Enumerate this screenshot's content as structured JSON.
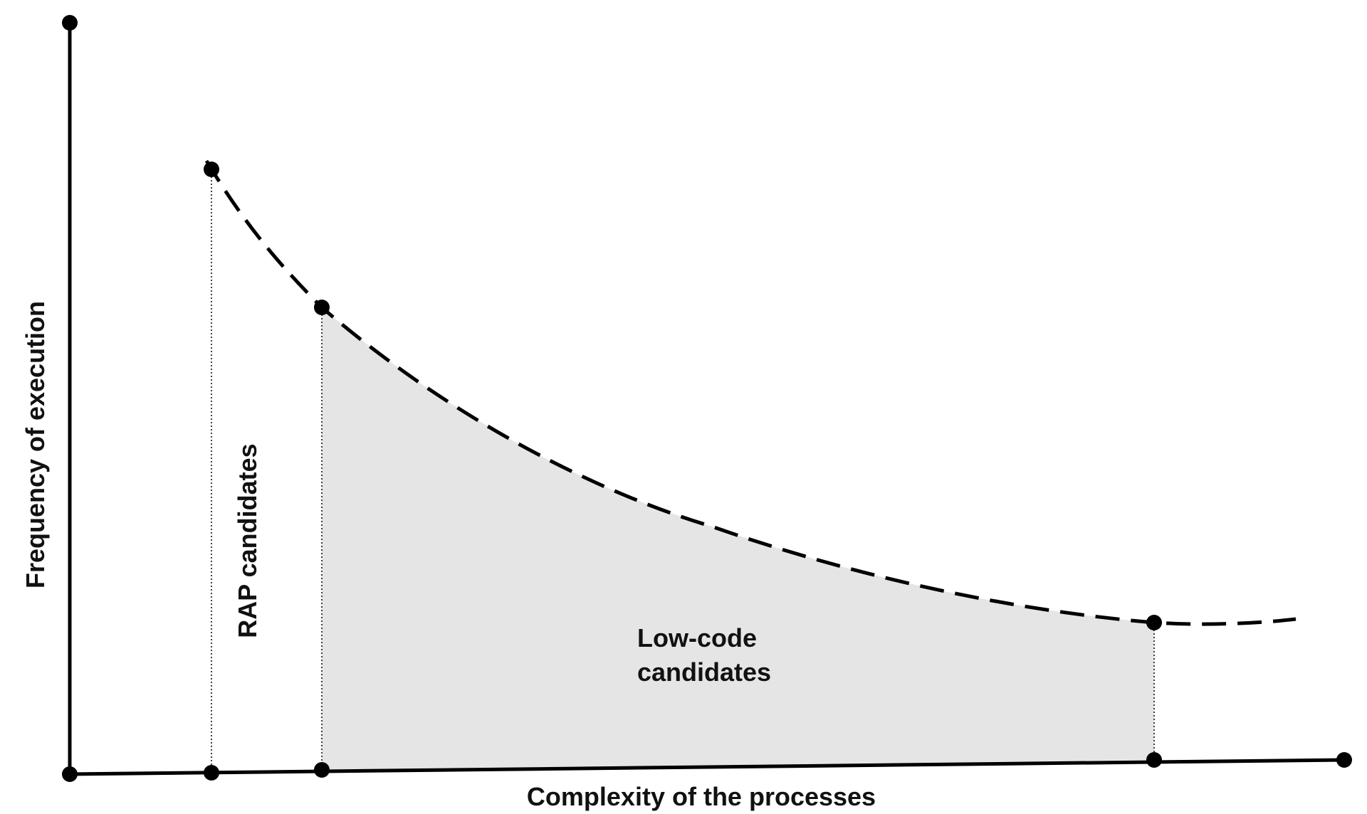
{
  "labels": {
    "y_axis": "Frequency of execution",
    "x_axis": "Complexity of the processes",
    "rap": "RAP candidates",
    "low_code_line1": "Low-code",
    "low_code_line2": "candidates"
  },
  "colors": {
    "line": "#000000",
    "region_fill": "#e5e5e5",
    "text": "#111111"
  },
  "curve_style": "dashed",
  "guide_style": "dotted"
}
